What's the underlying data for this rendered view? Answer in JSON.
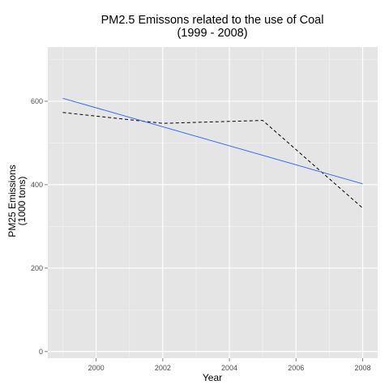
{
  "chart_data": {
    "type": "line",
    "title": "PM2.5 Emissons related to the use of Coal",
    "subtitle": "(1999 - 2008)",
    "xlabel": "Year",
    "ylabel": "PM25 Emissions",
    "ylabel_line2": "(1000 tons)",
    "xlim": [
      1998.55,
      2008.45
    ],
    "ylim": [
      -16,
      730
    ],
    "x_ticks": [
      2000,
      2002,
      2004,
      2006,
      2008
    ],
    "y_ticks": [
      0,
      200,
      400,
      600
    ],
    "x_tick_labels": [
      "2000",
      "2002",
      "2004",
      "2006",
      "2008"
    ],
    "y_tick_labels": [
      "0",
      "200",
      "400",
      "600"
    ],
    "grid": true,
    "colors": {
      "panel": "#e5e5e5",
      "grid_major": "#ffffff",
      "grid_minor": "#f2f2f2",
      "trend": "#3366ff",
      "observed": "#000000"
    },
    "series": [
      {
        "style": "dashed",
        "x": [
          1999,
          2002,
          2005,
          2008
        ],
        "values": [
          573,
          547,
          554,
          344
        ]
      },
      {
        "style": "trend",
        "x": [
          1999,
          2008
        ],
        "values": [
          607,
          402
        ]
      }
    ]
  }
}
